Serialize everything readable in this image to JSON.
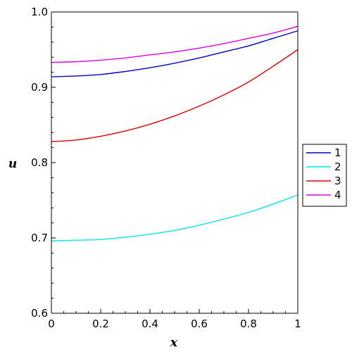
{
  "chart_data": {
    "type": "line",
    "title": "",
    "xlabel": "x",
    "ylabel": "u",
    "xlim": [
      0,
      1
    ],
    "ylim": [
      0.6,
      1.0
    ],
    "x_ticks": [
      {
        "value": 0,
        "label": "0"
      },
      {
        "value": 0.2,
        "label": "0.2"
      },
      {
        "value": 0.4,
        "label": "0.4"
      },
      {
        "value": 0.6,
        "label": "0.6"
      },
      {
        "value": 0.8,
        "label": "0.8"
      },
      {
        "value": 1,
        "label": "1"
      }
    ],
    "y_ticks": [
      {
        "value": 0.6,
        "label": "0.6"
      },
      {
        "value": 0.7,
        "label": "0.7"
      },
      {
        "value": 0.8,
        "label": "0.8"
      },
      {
        "value": 0.9,
        "label": "0.9"
      },
      {
        "value": 1.0,
        "label": "1.0"
      }
    ],
    "grid": false,
    "legend_position": "right",
    "x": [
      0,
      0.1,
      0.2,
      0.3,
      0.4,
      0.5,
      0.6,
      0.7,
      0.8,
      0.9,
      1.0
    ],
    "series": [
      {
        "name": "1",
        "color": "#0000cc",
        "values": [
          0.914,
          0.915,
          0.917,
          0.921,
          0.926,
          0.932,
          0.939,
          0.947,
          0.955,
          0.965,
          0.975
        ]
      },
      {
        "name": "2",
        "color": "#00e5e5",
        "values": [
          0.696,
          0.697,
          0.698,
          0.701,
          0.705,
          0.71,
          0.717,
          0.725,
          0.734,
          0.745,
          0.757
        ]
      },
      {
        "name": "3",
        "color": "#e60000",
        "values": [
          0.828,
          0.83,
          0.835,
          0.842,
          0.851,
          0.862,
          0.875,
          0.89,
          0.907,
          0.928,
          0.95
        ]
      },
      {
        "name": "4",
        "color": "#e000e0",
        "values": [
          0.933,
          0.934,
          0.936,
          0.939,
          0.943,
          0.947,
          0.952,
          0.958,
          0.965,
          0.972,
          0.981
        ]
      }
    ]
  }
}
